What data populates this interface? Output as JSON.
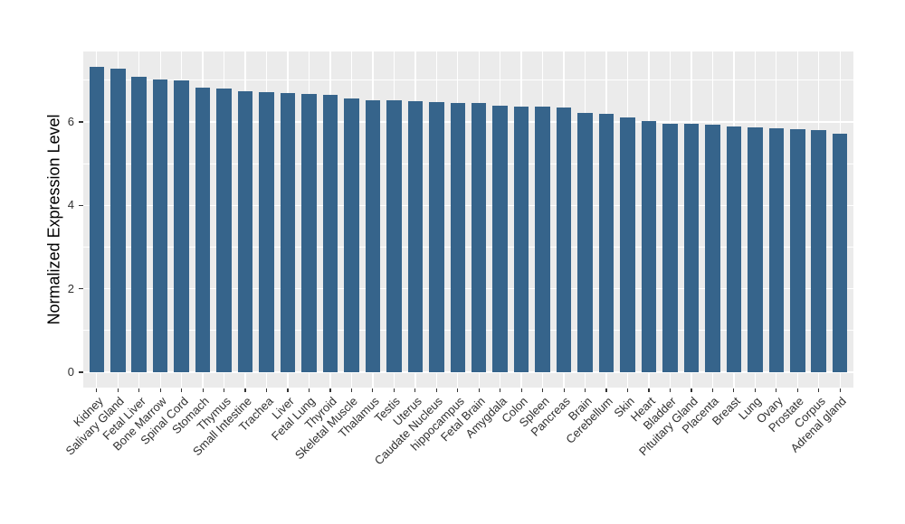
{
  "figure": {
    "background_color": "#FFFFFF"
  },
  "chart_data": {
    "type": "bar",
    "title": "",
    "xlabel": "",
    "ylabel": "Normalized Expression Level",
    "legend_position": "none",
    "orientation": "vertical",
    "sorted": "descending",
    "categories": [
      "Kidney",
      "Salivary Gland",
      "Fetal Liver",
      "Bone Marrow",
      "Spinal Cord",
      "Stomach",
      "Thymus",
      "Small Intestine",
      "Trachea",
      "Liver",
      "Fetal Lung",
      "Thyroid",
      "Skeletal Muscle",
      "Thalamus",
      "Testis",
      "Uterus",
      "Caudate Nucleus",
      "hippocampus",
      "Fetal Brain",
      "Amygdala",
      "Colon",
      "Spleen",
      "Pancreas",
      "Brain",
      "Cerebellum",
      "Skin",
      "Heart",
      "Bladder",
      "Pituitary Gland",
      "Placenta",
      "Breast",
      "Lung",
      "Ovary",
      "Prostate",
      "Corpus",
      "Adrenal gland"
    ],
    "values": [
      7.32,
      7.28,
      7.08,
      7.02,
      6.99,
      6.83,
      6.8,
      6.74,
      6.71,
      6.69,
      6.68,
      6.65,
      6.56,
      6.53,
      6.52,
      6.5,
      6.48,
      6.46,
      6.45,
      6.38,
      6.37,
      6.36,
      6.34,
      6.21,
      6.2,
      6.11,
      6.02,
      5.96,
      5.95,
      5.94,
      5.9,
      5.87,
      5.84,
      5.83,
      5.81,
      5.71
    ],
    "ylim": [
      0,
      7.69
    ],
    "yticks_major": [
      0,
      2,
      4,
      6
    ],
    "yticks_minor": [
      1,
      3,
      5,
      7
    ],
    "x_label_rotation_deg": 45,
    "grid": "on",
    "bar_color": "#36648B",
    "panel_background_color": "#EBEBEB",
    "gridline_color": "#FFFFFF",
    "axis_text_color": "#303030",
    "axis_title_color": "#000000"
  }
}
